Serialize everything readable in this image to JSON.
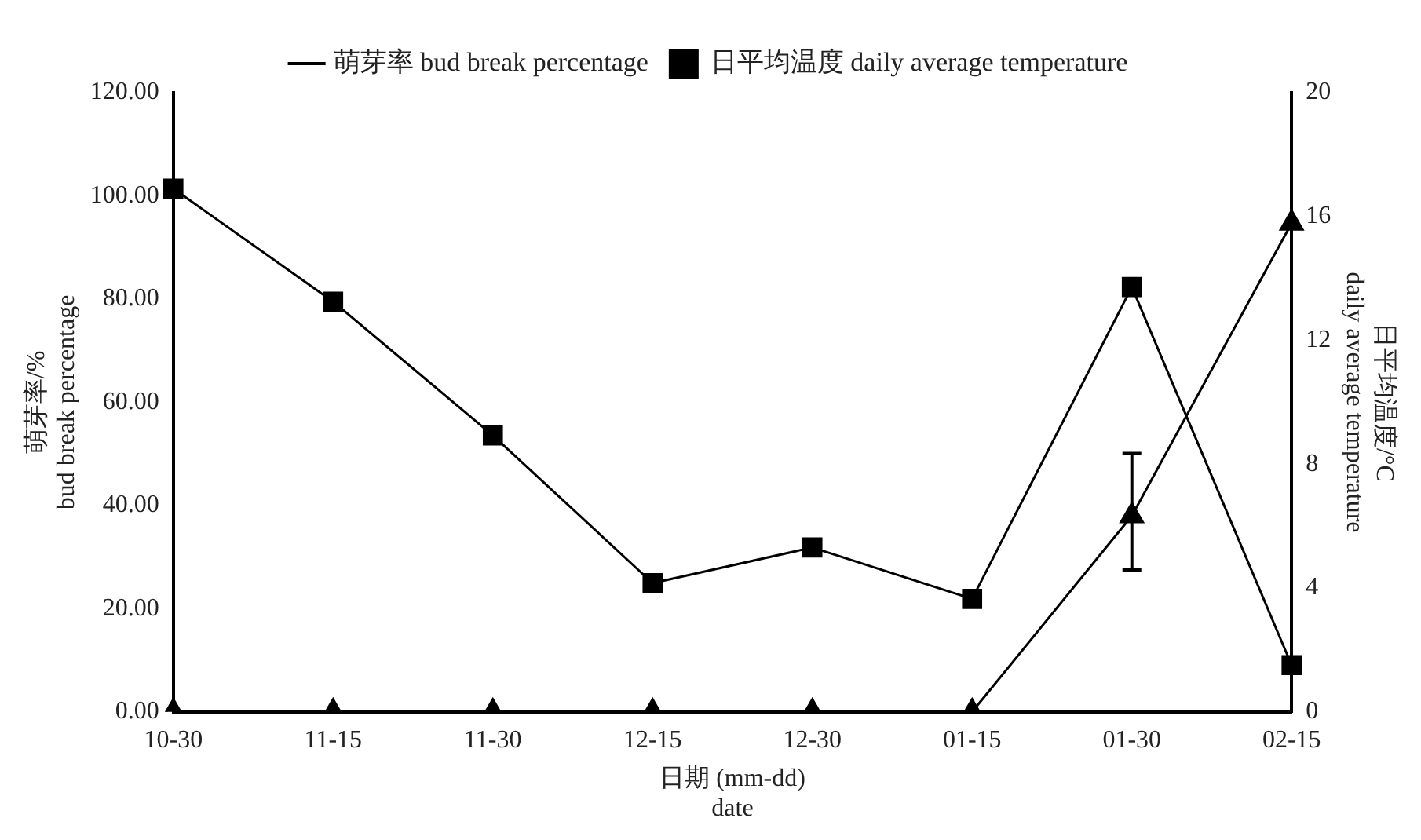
{
  "chart_data": {
    "type": "line",
    "xlabel": "日期 (mm-dd)\ndate",
    "ylabel": "萌芽率/%\nbud break percentage",
    "y2label": "日平均温度/°C\ndaily average temperature",
    "categories": [
      "10-30",
      "11-15",
      "11-30",
      "12-15",
      "12-30",
      "01-15",
      "01-30",
      "02-15"
    ],
    "series": [
      {
        "name": "萌芽率 bud break percentage",
        "color": "#000000",
        "marker": "triangle",
        "values": [
          0,
          0,
          0,
          0,
          0,
          0,
          38,
          94.7
        ],
        "errors": [
          null,
          null,
          null,
          null,
          null,
          null,
          [
            27.5,
            50.1
          ],
          null
        ]
      },
      {
        "name": "日平均温度 daily average temperature",
        "color": "#000000",
        "marker": "square",
        "axis": "y2",
        "values": [
          16.9,
          13.25,
          8.93,
          4.16,
          5.31,
          3.65,
          13.72,
          1.51
        ]
      }
    ],
    "ylim": [
      0,
      120
    ],
    "yticks": [
      {
        "value": 0,
        "label": "0.00"
      },
      {
        "value": 20,
        "label": "20.00"
      },
      {
        "value": 40,
        "label": "40.00"
      },
      {
        "value": 60,
        "label": "60.00"
      },
      {
        "value": 80,
        "label": "80.00"
      },
      {
        "value": 100,
        "label": "100.00"
      },
      {
        "value": 120,
        "label": "120.00"
      }
    ],
    "y2lim": [
      0,
      20
    ],
    "y2ticks": [
      0,
      4,
      8,
      12,
      16,
      20
    ],
    "grid": false,
    "legend": "top",
    "line_style": "solid"
  }
}
